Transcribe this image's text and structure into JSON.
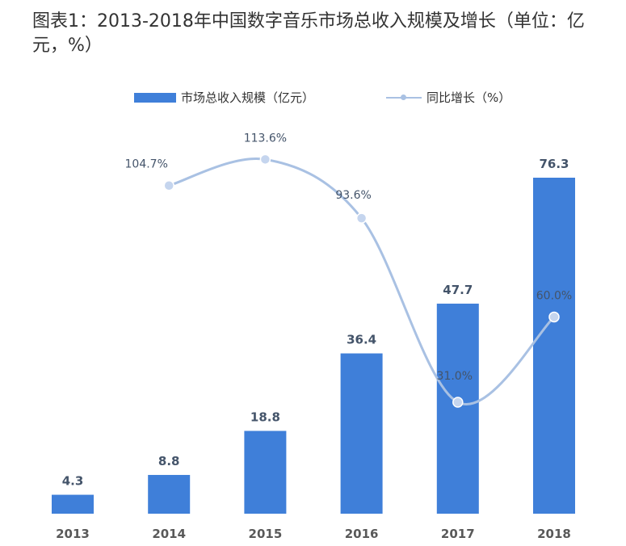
{
  "title": "图表1：2013-2018年中国数字音乐市场总收入规模及增长（单位：亿元，%）",
  "colors": {
    "bar": "#3f7fd9",
    "line": "#a9c1e3",
    "marker": "#c5d5ee"
  },
  "chart_data": {
    "type": "bar",
    "categories": [
      "2013",
      "2014",
      "2015",
      "2016",
      "2017",
      "2018"
    ],
    "series": [
      {
        "name": "市场总收入规模（亿元）",
        "type": "bar",
        "values": [
          4.3,
          8.8,
          18.8,
          36.4,
          47.7,
          76.3
        ],
        "labels": [
          "4.3",
          "8.8",
          "18.8",
          "36.4",
          "47.7",
          "76.3"
        ]
      },
      {
        "name": "同比增长（%）",
        "type": "line",
        "values": [
          null,
          104.7,
          113.6,
          93.6,
          31.0,
          60.0
        ],
        "labels": [
          "",
          "104.7%",
          "113.6%",
          "93.6%",
          "31.0%",
          "60.0%"
        ]
      }
    ],
    "legend_position": "top-center",
    "grid": false
  }
}
